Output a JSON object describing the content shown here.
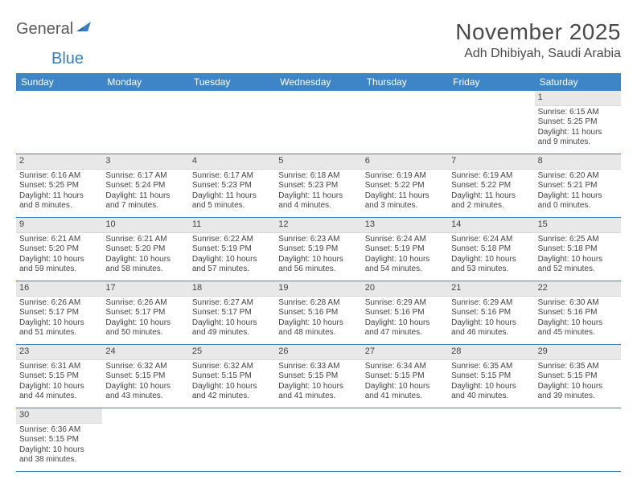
{
  "logo": {
    "text1": "General",
    "text2": "Blue"
  },
  "title": "November 2025",
  "location": "Adh Dhibiyah, Saudi Arabia",
  "colors": {
    "header_bg": "#3d85c6",
    "header_text": "#ffffff",
    "daynum_bg": "#e8e8e8",
    "row_border": "#3d85c6",
    "body_text": "#444444",
    "logo_gray": "#5a5a5a",
    "logo_blue": "#3a7fc4"
  },
  "weekdays": [
    "Sunday",
    "Monday",
    "Tuesday",
    "Wednesday",
    "Thursday",
    "Friday",
    "Saturday"
  ],
  "weeks": [
    [
      null,
      null,
      null,
      null,
      null,
      null,
      {
        "n": "1",
        "sunrise": "Sunrise: 6:15 AM",
        "sunset": "Sunset: 5:25 PM",
        "day1": "Daylight: 11 hours",
        "day2": "and 9 minutes."
      }
    ],
    [
      {
        "n": "2",
        "sunrise": "Sunrise: 6:16 AM",
        "sunset": "Sunset: 5:25 PM",
        "day1": "Daylight: 11 hours",
        "day2": "and 8 minutes."
      },
      {
        "n": "3",
        "sunrise": "Sunrise: 6:17 AM",
        "sunset": "Sunset: 5:24 PM",
        "day1": "Daylight: 11 hours",
        "day2": "and 7 minutes."
      },
      {
        "n": "4",
        "sunrise": "Sunrise: 6:17 AM",
        "sunset": "Sunset: 5:23 PM",
        "day1": "Daylight: 11 hours",
        "day2": "and 5 minutes."
      },
      {
        "n": "5",
        "sunrise": "Sunrise: 6:18 AM",
        "sunset": "Sunset: 5:23 PM",
        "day1": "Daylight: 11 hours",
        "day2": "and 4 minutes."
      },
      {
        "n": "6",
        "sunrise": "Sunrise: 6:19 AM",
        "sunset": "Sunset: 5:22 PM",
        "day1": "Daylight: 11 hours",
        "day2": "and 3 minutes."
      },
      {
        "n": "7",
        "sunrise": "Sunrise: 6:19 AM",
        "sunset": "Sunset: 5:22 PM",
        "day1": "Daylight: 11 hours",
        "day2": "and 2 minutes."
      },
      {
        "n": "8",
        "sunrise": "Sunrise: 6:20 AM",
        "sunset": "Sunset: 5:21 PM",
        "day1": "Daylight: 11 hours",
        "day2": "and 0 minutes."
      }
    ],
    [
      {
        "n": "9",
        "sunrise": "Sunrise: 6:21 AM",
        "sunset": "Sunset: 5:20 PM",
        "day1": "Daylight: 10 hours",
        "day2": "and 59 minutes."
      },
      {
        "n": "10",
        "sunrise": "Sunrise: 6:21 AM",
        "sunset": "Sunset: 5:20 PM",
        "day1": "Daylight: 10 hours",
        "day2": "and 58 minutes."
      },
      {
        "n": "11",
        "sunrise": "Sunrise: 6:22 AM",
        "sunset": "Sunset: 5:19 PM",
        "day1": "Daylight: 10 hours",
        "day2": "and 57 minutes."
      },
      {
        "n": "12",
        "sunrise": "Sunrise: 6:23 AM",
        "sunset": "Sunset: 5:19 PM",
        "day1": "Daylight: 10 hours",
        "day2": "and 56 minutes."
      },
      {
        "n": "13",
        "sunrise": "Sunrise: 6:24 AM",
        "sunset": "Sunset: 5:19 PM",
        "day1": "Daylight: 10 hours",
        "day2": "and 54 minutes."
      },
      {
        "n": "14",
        "sunrise": "Sunrise: 6:24 AM",
        "sunset": "Sunset: 5:18 PM",
        "day1": "Daylight: 10 hours",
        "day2": "and 53 minutes."
      },
      {
        "n": "15",
        "sunrise": "Sunrise: 6:25 AM",
        "sunset": "Sunset: 5:18 PM",
        "day1": "Daylight: 10 hours",
        "day2": "and 52 minutes."
      }
    ],
    [
      {
        "n": "16",
        "sunrise": "Sunrise: 6:26 AM",
        "sunset": "Sunset: 5:17 PM",
        "day1": "Daylight: 10 hours",
        "day2": "and 51 minutes."
      },
      {
        "n": "17",
        "sunrise": "Sunrise: 6:26 AM",
        "sunset": "Sunset: 5:17 PM",
        "day1": "Daylight: 10 hours",
        "day2": "and 50 minutes."
      },
      {
        "n": "18",
        "sunrise": "Sunrise: 6:27 AM",
        "sunset": "Sunset: 5:17 PM",
        "day1": "Daylight: 10 hours",
        "day2": "and 49 minutes."
      },
      {
        "n": "19",
        "sunrise": "Sunrise: 6:28 AM",
        "sunset": "Sunset: 5:16 PM",
        "day1": "Daylight: 10 hours",
        "day2": "and 48 minutes."
      },
      {
        "n": "20",
        "sunrise": "Sunrise: 6:29 AM",
        "sunset": "Sunset: 5:16 PM",
        "day1": "Daylight: 10 hours",
        "day2": "and 47 minutes."
      },
      {
        "n": "21",
        "sunrise": "Sunrise: 6:29 AM",
        "sunset": "Sunset: 5:16 PM",
        "day1": "Daylight: 10 hours",
        "day2": "and 46 minutes."
      },
      {
        "n": "22",
        "sunrise": "Sunrise: 6:30 AM",
        "sunset": "Sunset: 5:16 PM",
        "day1": "Daylight: 10 hours",
        "day2": "and 45 minutes."
      }
    ],
    [
      {
        "n": "23",
        "sunrise": "Sunrise: 6:31 AM",
        "sunset": "Sunset: 5:15 PM",
        "day1": "Daylight: 10 hours",
        "day2": "and 44 minutes."
      },
      {
        "n": "24",
        "sunrise": "Sunrise: 6:32 AM",
        "sunset": "Sunset: 5:15 PM",
        "day1": "Daylight: 10 hours",
        "day2": "and 43 minutes."
      },
      {
        "n": "25",
        "sunrise": "Sunrise: 6:32 AM",
        "sunset": "Sunset: 5:15 PM",
        "day1": "Daylight: 10 hours",
        "day2": "and 42 minutes."
      },
      {
        "n": "26",
        "sunrise": "Sunrise: 6:33 AM",
        "sunset": "Sunset: 5:15 PM",
        "day1": "Daylight: 10 hours",
        "day2": "and 41 minutes."
      },
      {
        "n": "27",
        "sunrise": "Sunrise: 6:34 AM",
        "sunset": "Sunset: 5:15 PM",
        "day1": "Daylight: 10 hours",
        "day2": "and 41 minutes."
      },
      {
        "n": "28",
        "sunrise": "Sunrise: 6:35 AM",
        "sunset": "Sunset: 5:15 PM",
        "day1": "Daylight: 10 hours",
        "day2": "and 40 minutes."
      },
      {
        "n": "29",
        "sunrise": "Sunrise: 6:35 AM",
        "sunset": "Sunset: 5:15 PM",
        "day1": "Daylight: 10 hours",
        "day2": "and 39 minutes."
      }
    ],
    [
      {
        "n": "30",
        "sunrise": "Sunrise: 6:36 AM",
        "sunset": "Sunset: 5:15 PM",
        "day1": "Daylight: 10 hours",
        "day2": "and 38 minutes."
      },
      null,
      null,
      null,
      null,
      null,
      null
    ]
  ]
}
